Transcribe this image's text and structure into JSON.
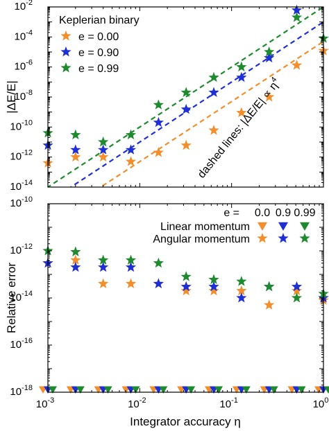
{
  "chart_data": [
    {
      "type": "scatter",
      "title": "",
      "xlabel": "",
      "ylabel": "|ΔE/E|",
      "xscale": "log",
      "yscale": "log",
      "xlim": [
        0.001,
        1
      ],
      "ylim": [
        1e-14,
        0.01
      ],
      "x_tick_labels": [],
      "y_ticks": [
        {
          "exp": "-14",
          "value": 1e-14
        },
        {
          "exp": "-12",
          "value": 1e-12
        },
        {
          "exp": "-10",
          "value": 1e-10
        },
        {
          "exp": "-8",
          "value": 1e-08
        },
        {
          "exp": "-6",
          "value": 1e-06
        },
        {
          "exp": "-4",
          "value": 0.0001
        },
        {
          "exp": "-2",
          "value": 0.01
        }
      ],
      "legend_title": "Keplerian binary",
      "legend_position": "top-left",
      "annotation": {
        "prefix": "dashed lines: |ΔE/E| ∝ η",
        "superscript": "4"
      },
      "series": [
        {
          "name": "e = 0.00",
          "marker": "star",
          "color": "#f28e2b",
          "x": [
            0.001,
            0.002,
            0.004,
            0.008,
            0.016,
            0.032,
            0.064,
            0.128,
            0.256,
            0.512,
            1.0
          ],
          "y": [
            4e-13,
            1e-12,
            1e-12,
            5e-13,
            2e-12,
            6e-12,
            6e-11,
            9e-10,
            1e-08,
            1.3e-06,
            1.2e-05
          ]
        },
        {
          "name": "e = 0.90",
          "marker": "star",
          "color": "#1f2fd6",
          "x": [
            0.001,
            0.002,
            0.004,
            0.008,
            0.016,
            0.032,
            0.064,
            0.128,
            0.256,
            0.512
          ],
          "y": [
            6e-12,
            3e-12,
            3e-12,
            3e-12,
            2e-10,
            1.5e-09,
            2e-08,
            2e-07,
            4e-06,
            0.006
          ]
        },
        {
          "name": "e = 0.99",
          "marker": "star",
          "color": "#1e8a2e",
          "x": [
            0.001,
            0.002,
            0.004,
            0.008,
            0.016,
            0.032,
            0.064,
            0.128,
            0.256,
            0.512,
            1.0
          ],
          "y": [
            4e-11,
            3e-11,
            1e-11,
            3e-11,
            3e-09,
            2e-08,
            2e-07,
            1e-06,
            1e-05,
            0.002,
            8e-05
          ]
        }
      ],
      "fit_lines": [
        {
          "name": "e = 0.00",
          "color": "#f28e2b",
          "style": "dashed",
          "coef": 5e-05,
          "power": 4
        },
        {
          "name": "e = 0.90",
          "color": "#1f2fd6",
          "style": "dashed",
          "coef": 0.001,
          "power": 4
        },
        {
          "name": "e = 0.99",
          "color": "#1e8a2e",
          "style": "dashed",
          "coef": 0.01,
          "power": 4
        }
      ]
    },
    {
      "type": "scatter",
      "title": "",
      "xlabel": "Integrator accuracy η",
      "ylabel": "Relative error",
      "xscale": "log",
      "yscale": "log",
      "xlim": [
        0.001,
        1
      ],
      "ylim": [
        1e-18,
        1e-10
      ],
      "x_ticks": [
        {
          "exp": "-3",
          "value": 0.001
        },
        {
          "exp": "-2",
          "value": 0.01
        },
        {
          "exp": "-1",
          "value": 0.1
        },
        {
          "exp": "0",
          "value": 1
        }
      ],
      "y_ticks": [
        {
          "exp": "-18",
          "value": 1e-18
        },
        {
          "exp": "-16",
          "value": 1e-16
        },
        {
          "exp": "-14",
          "value": 1e-14
        },
        {
          "exp": "-12",
          "value": 1e-12
        },
        {
          "exp": "-10",
          "value": 1e-10
        }
      ],
      "legend_position": "top-right",
      "legend": {
        "header_label": "e =",
        "e_values": [
          "0.0",
          "0.9",
          "0.99"
        ],
        "colors": [
          "#f28e2b",
          "#1f2fd6",
          "#1e8a2e"
        ],
        "rows": [
          {
            "label": "Linear momentum",
            "marker": "triangle-down"
          },
          {
            "label": "Angular momentum",
            "marker": "star"
          }
        ]
      },
      "series": [
        {
          "name": "Angular momentum, e = 0.0",
          "marker": "star",
          "color": "#f28e2b",
          "x": [
            0.001,
            0.002,
            0.004,
            0.008,
            0.016,
            0.032,
            0.064,
            0.128,
            0.256,
            0.512,
            1.0
          ],
          "y": [
            3e-13,
            4e-13,
            4e-14,
            4e-14,
            4e-14,
            2e-14,
            2e-14,
            2e-14,
            5e-15,
            2e-14,
            8e-15
          ]
        },
        {
          "name": "Angular momentum, e = 0.9",
          "marker": "star",
          "color": "#1f2fd6",
          "x": [
            0.001,
            0.002,
            0.004,
            0.008,
            0.016,
            0.032,
            0.064,
            0.128,
            0.256,
            0.512,
            1.0
          ],
          "y": [
            3e-13,
            2e-13,
            2e-13,
            2e-13,
            4e-14,
            3e-14,
            3e-14,
            1e-14,
            3e-14,
            3e-14,
            1e-14
          ]
        },
        {
          "name": "Angular momentum, e = 0.99",
          "marker": "star",
          "color": "#1e8a2e",
          "x": [
            0.001,
            0.002,
            0.004,
            0.008,
            0.016,
            0.032,
            0.064,
            0.128,
            0.256,
            0.512,
            1.0
          ],
          "y": [
            1e-12,
            9e-13,
            4e-13,
            4e-13,
            3e-13,
            8e-14,
            6e-14,
            5e-14,
            3e-14,
            1e-14,
            1.5e-14
          ]
        },
        {
          "name": "Linear momentum, e = 0.0",
          "marker": "triangle-down",
          "color": "#f28e2b",
          "x": [
            0.001,
            0.002,
            0.004,
            0.008,
            0.016,
            0.032,
            0.064,
            0.128,
            0.256,
            0.512,
            1.0
          ],
          "y": [
            1e-18,
            1e-18,
            1e-18,
            1e-18,
            1e-18,
            1e-18,
            1e-18,
            1e-18,
            1e-18,
            1e-18,
            1e-18
          ]
        },
        {
          "name": "Linear momentum, e = 0.9",
          "marker": "triangle-down",
          "color": "#1f2fd6",
          "x": [
            0.001,
            0.002,
            0.004,
            0.008,
            0.016,
            0.032,
            0.064,
            0.128,
            0.256,
            0.512,
            1.0
          ],
          "y": [
            1e-18,
            1e-18,
            1e-18,
            1e-18,
            1e-18,
            1e-18,
            1e-18,
            1e-18,
            1e-18,
            1e-18,
            1e-18
          ]
        },
        {
          "name": "Linear momentum, e = 0.99",
          "marker": "triangle-down",
          "color": "#1e8a2e",
          "x": [
            0.001,
            0.002,
            0.004,
            0.008,
            0.016,
            0.032,
            0.064,
            0.128,
            0.256,
            0.512,
            1.0
          ],
          "y": [
            1e-18,
            1e-18,
            1e-18,
            1e-18,
            1e-18,
            1e-18,
            1e-18,
            1e-18,
            1e-18,
            1e-18,
            1e-18
          ]
        }
      ]
    }
  ]
}
